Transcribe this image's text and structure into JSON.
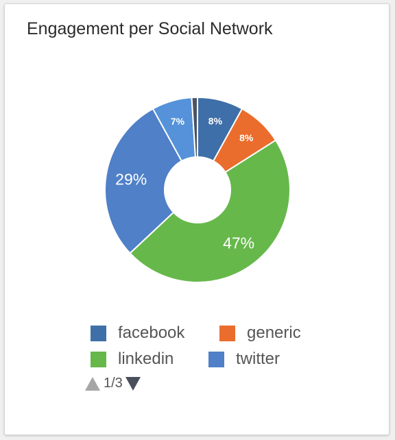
{
  "card": {
    "title": "Engagement per Social Network"
  },
  "chart_data": {
    "type": "pie",
    "donut": true,
    "title": "Engagement per Social Network",
    "slices": [
      {
        "name": "facebook",
        "value": 8,
        "label": "8%",
        "color": "#3f6fa8"
      },
      {
        "name": "generic",
        "value": 8,
        "label": "8%",
        "color": "#ea6d2d"
      },
      {
        "name": "linkedin",
        "value": 47,
        "label": "47%",
        "color": "#66b84b"
      },
      {
        "name": "twitter",
        "value": 29,
        "label": "29%",
        "color": "#4f80c8"
      },
      {
        "name": "",
        "value": 7,
        "label": "7%",
        "color": "#5592d9"
      },
      {
        "name": "",
        "value": 1,
        "label": "",
        "color": "#4a5366"
      }
    ],
    "legend": {
      "placement": "bottom",
      "items": [
        {
          "name": "facebook",
          "color": "#3f6fa8"
        },
        {
          "name": "generic",
          "color": "#ea6d2d"
        },
        {
          "name": "linkedin",
          "color": "#66b84b"
        },
        {
          "name": "twitter",
          "color": "#4f80c8"
        }
      ]
    }
  },
  "pager": {
    "text": "1/3"
  }
}
